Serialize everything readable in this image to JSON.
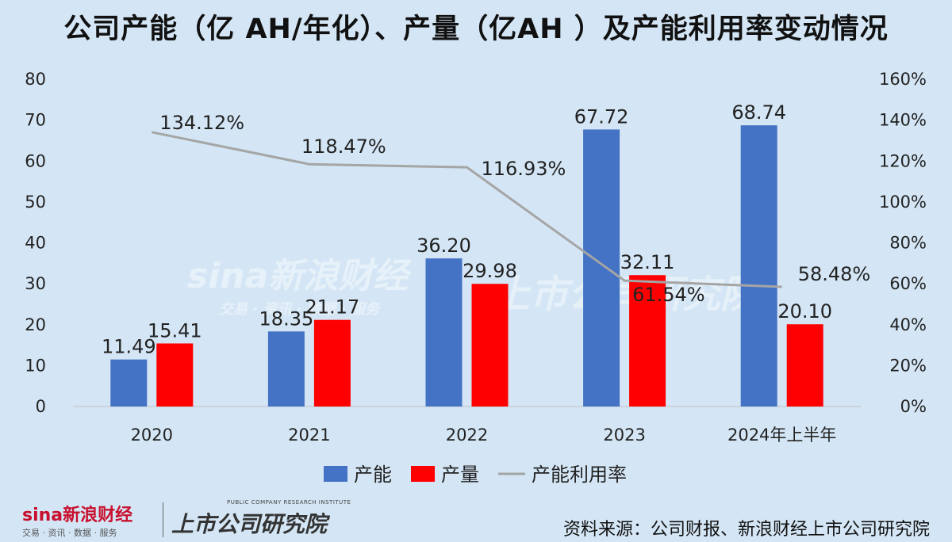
{
  "title": "公司产能（亿 AH/年化）、产量（亿AH ）及产能利用率变动情况",
  "colors": {
    "capacity": "#4472c4",
    "output": "#ff0000",
    "utilization": "#a5a5a5",
    "background": "#d4e6f5"
  },
  "chart_data": {
    "type": "bar",
    "title": "公司产能（亿 AH/年化）、产量（亿AH ）及产能利用率变动情况",
    "categories": [
      "2020",
      "2021",
      "2022",
      "2023",
      "2024年上半年"
    ],
    "series": [
      {
        "name": "产能",
        "type": "bar",
        "axis": "left",
        "values": [
          11.49,
          18.35,
          36.2,
          67.72,
          68.74
        ],
        "labels": [
          "11.49",
          "18.35",
          "36.20",
          "67.72",
          "68.74"
        ]
      },
      {
        "name": "产量",
        "type": "bar",
        "axis": "left",
        "values": [
          15.41,
          21.17,
          29.98,
          32.11,
          20.1
        ],
        "labels": [
          "15.41",
          "21.17",
          "29.98",
          "32.11",
          "20.10"
        ]
      },
      {
        "name": "产能利用率",
        "type": "line",
        "axis": "right",
        "values": [
          134.12,
          118.47,
          116.93,
          61.54,
          58.48
        ],
        "labels": [
          "134.12%",
          "118.47%",
          "116.93%",
          "61.54%",
          "58.48%"
        ]
      }
    ],
    "y_left": {
      "min": 0,
      "max": 80,
      "ticks": [
        "0",
        "10",
        "20",
        "30",
        "40",
        "50",
        "60",
        "70",
        "80"
      ]
    },
    "y_right": {
      "min": 0,
      "max": 160,
      "ticks": [
        "0%",
        "20%",
        "40%",
        "60%",
        "80%",
        "100%",
        "120%",
        "140%",
        "160%"
      ]
    },
    "grid": false,
    "legend": "bottom"
  },
  "footer": {
    "logo": "sina新浪财经",
    "logo_sub": "交易 · 资讯 · 数据 · 服务",
    "institute": "上市公司研究院",
    "institute_tag": "PUBLIC COMPANY RESEARCH INSTITUTE",
    "source": "资料来源：公司财报、新浪财经上市公司研究院"
  }
}
